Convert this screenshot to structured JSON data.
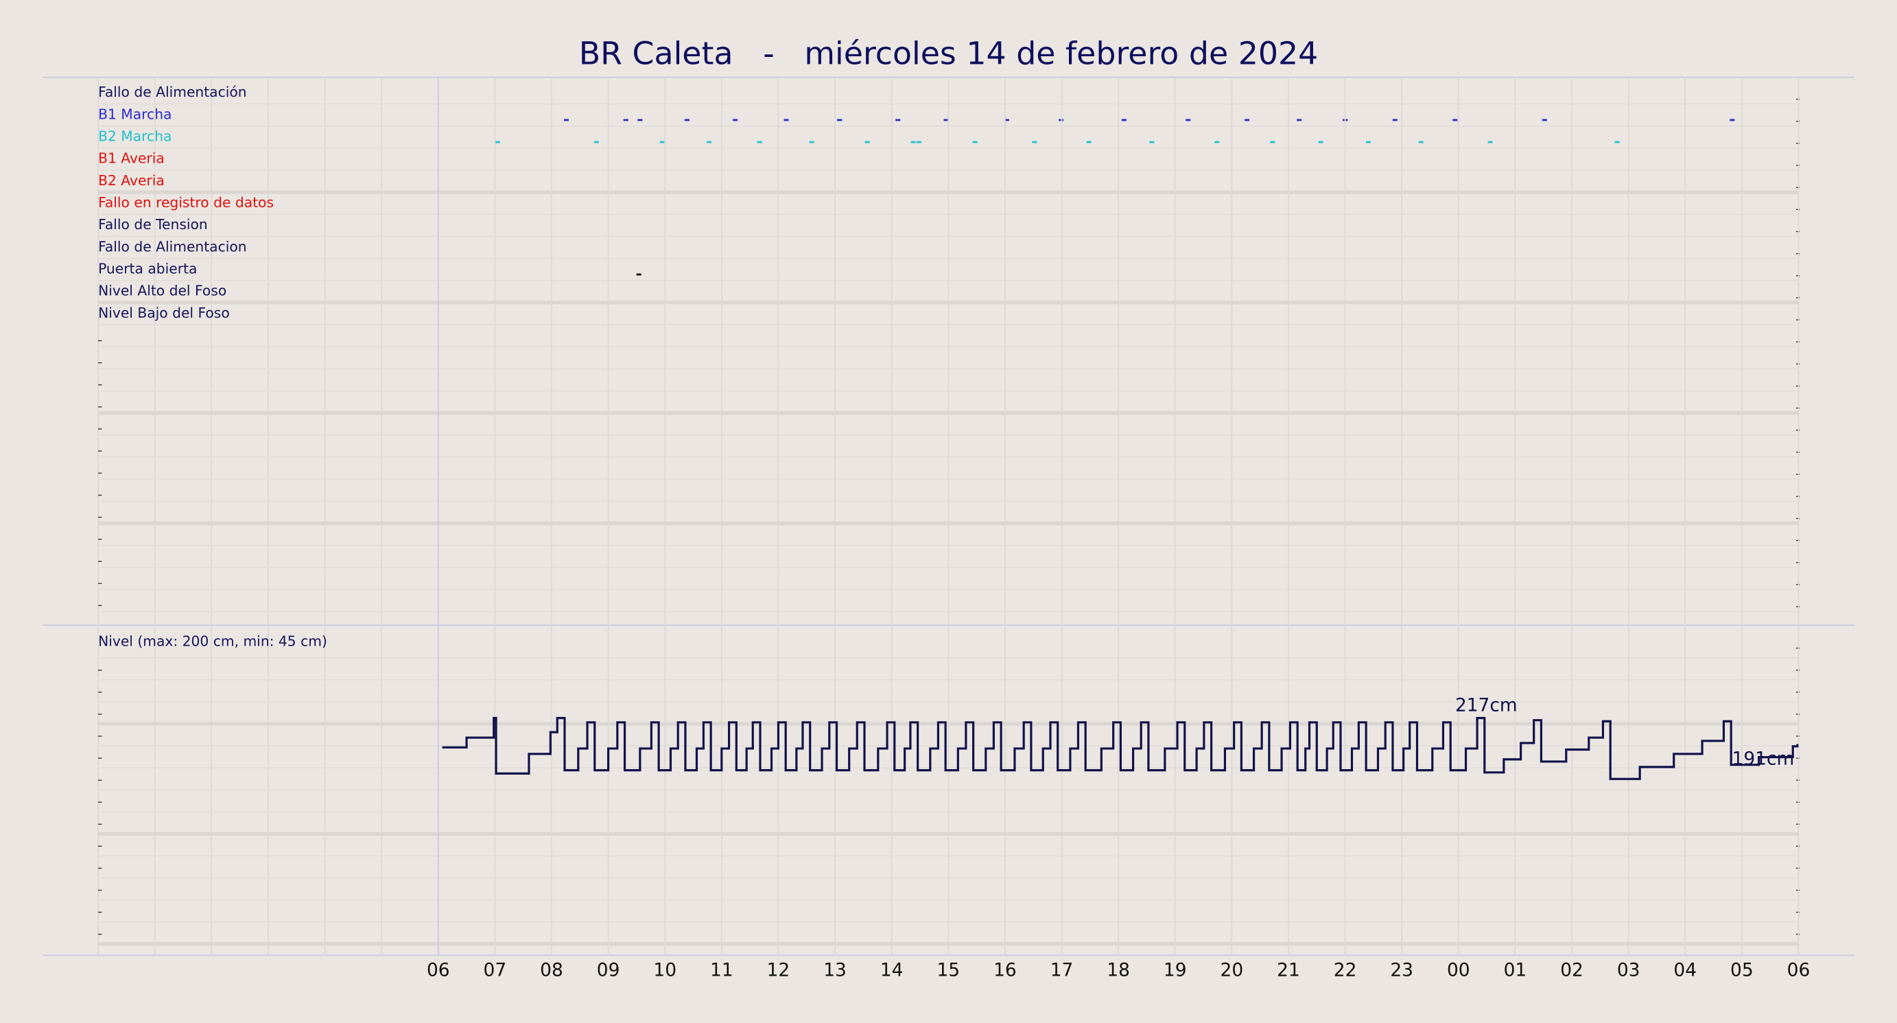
{
  "chart_data": [
    {
      "type": "event",
      "title": "BR Caleta   -   miércoles 14 de febrero de 2024",
      "xlim": [
        -6,
        24
      ],
      "rows": [
        {
          "name": "Fallo de Alimentación",
          "color": "#14145a",
          "times": []
        },
        {
          "name": "B1 Marcha",
          "color": "#2a2ad0",
          "times": [
            2.26,
            3.31,
            3.56,
            4.39,
            5.24,
            6.14,
            7.08,
            8.11,
            8.96,
            10.03,
            10.99,
            12.1,
            13.23,
            14.27,
            15.19,
            16.0,
            16.88,
            17.94,
            19.52,
            22.83
          ]
        },
        {
          "name": "B2 Marcha",
          "color": "#20c0d0",
          "times": [
            1.05,
            2.79,
            3.95,
            4.78,
            5.67,
            6.59,
            7.57,
            8.38,
            8.48,
            9.47,
            10.52,
            11.48,
            12.59,
            13.74,
            14.72,
            15.57,
            16.41,
            17.34,
            18.56,
            20.8
          ]
        },
        {
          "name": "B1 Averia",
          "color": "#e01010",
          "times": []
        },
        {
          "name": "B2 Averia",
          "color": "#e01010",
          "times": []
        },
        {
          "name": "Fallo en registro de datos",
          "color": "#e01010",
          "times": []
        },
        {
          "name": "Fallo de Tension",
          "color": "#14145a",
          "times": []
        },
        {
          "name": "Fallo de Alimentacion",
          "color": "#14145a",
          "times": []
        },
        {
          "name": "Puerta abierta",
          "color": "#14145a",
          "times": [
            3.54
          ]
        },
        {
          "name": "Nivel Alto del Foso",
          "color": "#14145a",
          "times": []
        },
        {
          "name": "Nivel Bajo del Foso",
          "color": "#14145a",
          "times": []
        }
      ]
    },
    {
      "type": "line",
      "label": "Nivel (max: 200 cm, min: 45 cm)",
      "color": "#10104a",
      "xlim": [
        -6,
        24
      ],
      "ylim": [
        0,
        303.3
      ],
      "xticks": [
        {
          "value": 0,
          "label": "06"
        },
        {
          "value": 1,
          "label": "07"
        },
        {
          "value": 2,
          "label": "08"
        },
        {
          "value": 3,
          "label": "09"
        },
        {
          "value": 4,
          "label": "10"
        },
        {
          "value": 5,
          "label": "11"
        },
        {
          "value": 6,
          "label": "12"
        },
        {
          "value": 7,
          "label": "13"
        },
        {
          "value": 8,
          "label": "14"
        },
        {
          "value": 9,
          "label": "15"
        },
        {
          "value": 10,
          "label": "16"
        },
        {
          "value": 11,
          "label": "17"
        },
        {
          "value": 12,
          "label": "18"
        },
        {
          "value": 13,
          "label": "19"
        },
        {
          "value": 14,
          "label": "20"
        },
        {
          "value": 15,
          "label": "21"
        },
        {
          "value": 16,
          "label": "22"
        },
        {
          "value": 17,
          "label": "23"
        },
        {
          "value": 18,
          "label": "00"
        },
        {
          "value": 19,
          "label": "01"
        },
        {
          "value": 20,
          "label": "02"
        },
        {
          "value": 21,
          "label": "03"
        },
        {
          "value": 22,
          "label": "04"
        },
        {
          "value": 23,
          "label": "05"
        },
        {
          "value": 24,
          "label": "06"
        }
      ],
      "x": [
        0.07,
        0.5,
        0.98,
        1.02,
        1.6,
        1.98,
        2.1,
        2.23,
        2.47,
        2.63,
        2.76,
        3.0,
        3.16,
        3.29,
        3.56,
        3.76,
        3.89,
        4.1,
        4.23,
        4.36,
        4.56,
        4.68,
        4.81,
        5.0,
        5.13,
        5.26,
        5.44,
        5.55,
        5.68,
        5.88,
        6.0,
        6.13,
        6.32,
        6.43,
        6.56,
        6.77,
        6.9,
        7.03,
        7.25,
        7.39,
        7.52,
        7.76,
        7.92,
        8.05,
        8.23,
        8.33,
        8.46,
        8.68,
        8.82,
        8.95,
        9.17,
        9.31,
        9.44,
        9.66,
        9.8,
        9.93,
        10.17,
        10.33,
        10.46,
        10.67,
        10.8,
        10.93,
        11.15,
        11.29,
        11.42,
        11.7,
        11.91,
        12.04,
        12.26,
        12.4,
        12.53,
        12.82,
        13.04,
        13.17,
        13.38,
        13.51,
        13.64,
        13.88,
        14.04,
        14.17,
        14.39,
        14.53,
        14.66,
        14.88,
        15.03,
        15.16,
        15.3,
        15.37,
        15.5,
        15.68,
        15.79,
        15.92,
        16.12,
        16.24,
        16.37,
        16.58,
        16.71,
        16.84,
        17.03,
        17.14,
        17.27,
        17.54,
        17.73,
        17.86,
        18.13,
        18.33,
        18.46,
        18.8,
        19.1,
        19.33,
        19.46,
        19.9,
        20.3,
        20.55,
        20.68,
        21.2,
        21.8,
        22.3,
        22.68,
        22.81,
        23.3,
        23.9,
        23.98
      ],
      "values": [
        191,
        200,
        218,
        167,
        185,
        205,
        218,
        170,
        190,
        214,
        170,
        190,
        214,
        170,
        190,
        214,
        170,
        190,
        214,
        170,
        190,
        214,
        170,
        190,
        214,
        170,
        190,
        214,
        170,
        190,
        214,
        170,
        190,
        214,
        170,
        190,
        214,
        170,
        190,
        214,
        170,
        190,
        214,
        170,
        190,
        214,
        170,
        190,
        214,
        170,
        190,
        214,
        170,
        190,
        214,
        170,
        190,
        214,
        170,
        190,
        214,
        170,
        190,
        214,
        170,
        190,
        214,
        170,
        190,
        214,
        170,
        190,
        214,
        170,
        190,
        214,
        170,
        190,
        214,
        170,
        190,
        214,
        170,
        190,
        214,
        170,
        190,
        214,
        170,
        190,
        214,
        170,
        190,
        214,
        170,
        190,
        214,
        170,
        190,
        214,
        170,
        190,
        214,
        170,
        190,
        218,
        168,
        180,
        195,
        216,
        178,
        189,
        200,
        215,
        162,
        173,
        185,
        197,
        215,
        175,
        182,
        192,
        194
      ],
      "annotations": [
        "217cm",
        "191cm"
      ]
    }
  ]
}
